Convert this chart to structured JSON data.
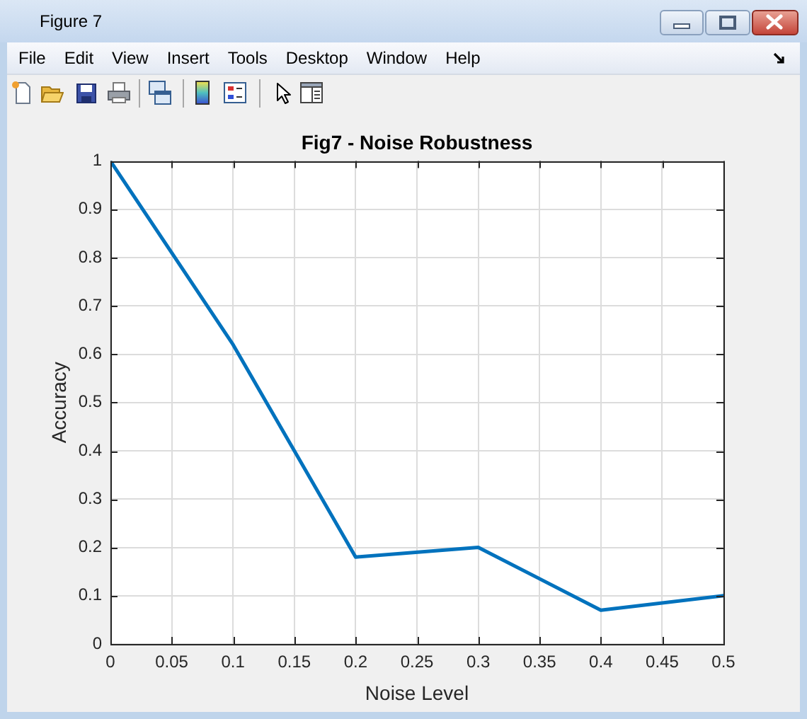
{
  "chart_data": {
    "type": "line",
    "title": "Fig7 - Noise Robustness",
    "xlabel": "Noise Level",
    "ylabel": "Accuracy",
    "x": [
      0,
      0.1,
      0.2,
      0.3,
      0.4,
      0.5
    ],
    "series": [
      {
        "color": "#0072bd",
        "values": [
          1,
          0.62,
          0.18,
          0.2,
          0.07,
          0.1
        ]
      }
    ],
    "xlim": [
      0,
      0.5
    ],
    "xticks": [
      0,
      0.05,
      0.1,
      0.15,
      0.2,
      0.25,
      0.3,
      0.35,
      0.4,
      0.45,
      0.5
    ],
    "ylim": [
      0,
      1
    ],
    "yticks": [
      0,
      0.1,
      0.2,
      0.3,
      0.4,
      0.5,
      0.6,
      0.7,
      0.8,
      0.9,
      1
    ],
    "grid": true,
    "line_style": "solid",
    "annotations": [
      "Figure 7",
      "File",
      "Edit",
      "View",
      "Insert",
      "Tools",
      "Desktop",
      "Window",
      "Help"
    ]
  }
}
